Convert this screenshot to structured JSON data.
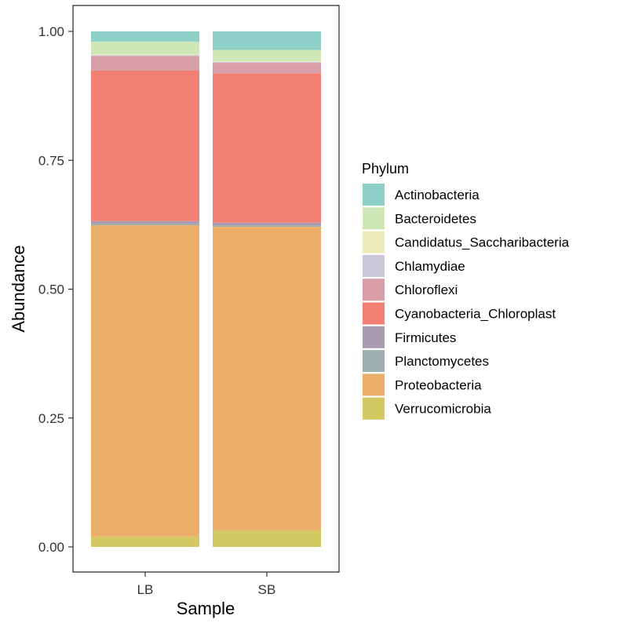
{
  "chart_data": {
    "type": "bar",
    "stacked": true,
    "xlabel": "Sample",
    "ylabel": "Abundance",
    "categories": [
      "LB",
      "SB"
    ],
    "ylim": [
      0,
      1
    ],
    "yticks": [
      0.0,
      0.25,
      0.5,
      0.75,
      1.0
    ],
    "ytick_labels": [
      "0.00",
      "0.25",
      "0.50",
      "0.75",
      "1.00"
    ],
    "grid": false,
    "legend_title": "Phylum",
    "legend_position": "right",
    "series": [
      {
        "name": "Verrucomicrobia",
        "color": "#d4c862",
        "values": [
          0.02,
          0.032
        ]
      },
      {
        "name": "Proteobacteria",
        "color": "#ecaf6b",
        "values": [
          0.604,
          0.589
        ]
      },
      {
        "name": "Planctomycetes",
        "color": "#9eb0b0",
        "values": [
          0.003,
          0.003
        ]
      },
      {
        "name": "Firmicutes",
        "color": "#a99cb1",
        "values": [
          0.005,
          0.005
        ]
      },
      {
        "name": "Cyanobacteria_Chloroplast",
        "color": "#f17f73",
        "values": [
          0.292,
          0.29
        ]
      },
      {
        "name": "Chloroflexi",
        "color": "#d89ea7",
        "values": [
          0.028,
          0.02
        ]
      },
      {
        "name": "Chlamydiae",
        "color": "#cac6d7",
        "values": [
          0.002,
          0.002
        ]
      },
      {
        "name": "Candidatus_Saccharibacteria",
        "color": "#eeeabb",
        "values": [
          0.002,
          0.001
        ]
      },
      {
        "name": "Bacteroidetes",
        "color": "#cfe6b6",
        "values": [
          0.024,
          0.022
        ]
      },
      {
        "name": "Actinobacteria",
        "color": "#8ed0c7",
        "values": [
          0.02,
          0.036
        ]
      }
    ],
    "legend_order": [
      "Actinobacteria",
      "Bacteroidetes",
      "Candidatus_Saccharibacteria",
      "Chlamydiae",
      "Chloroflexi",
      "Cyanobacteria_Chloroplast",
      "Firmicutes",
      "Planctomycetes",
      "Proteobacteria",
      "Verrucomicrobia"
    ]
  }
}
